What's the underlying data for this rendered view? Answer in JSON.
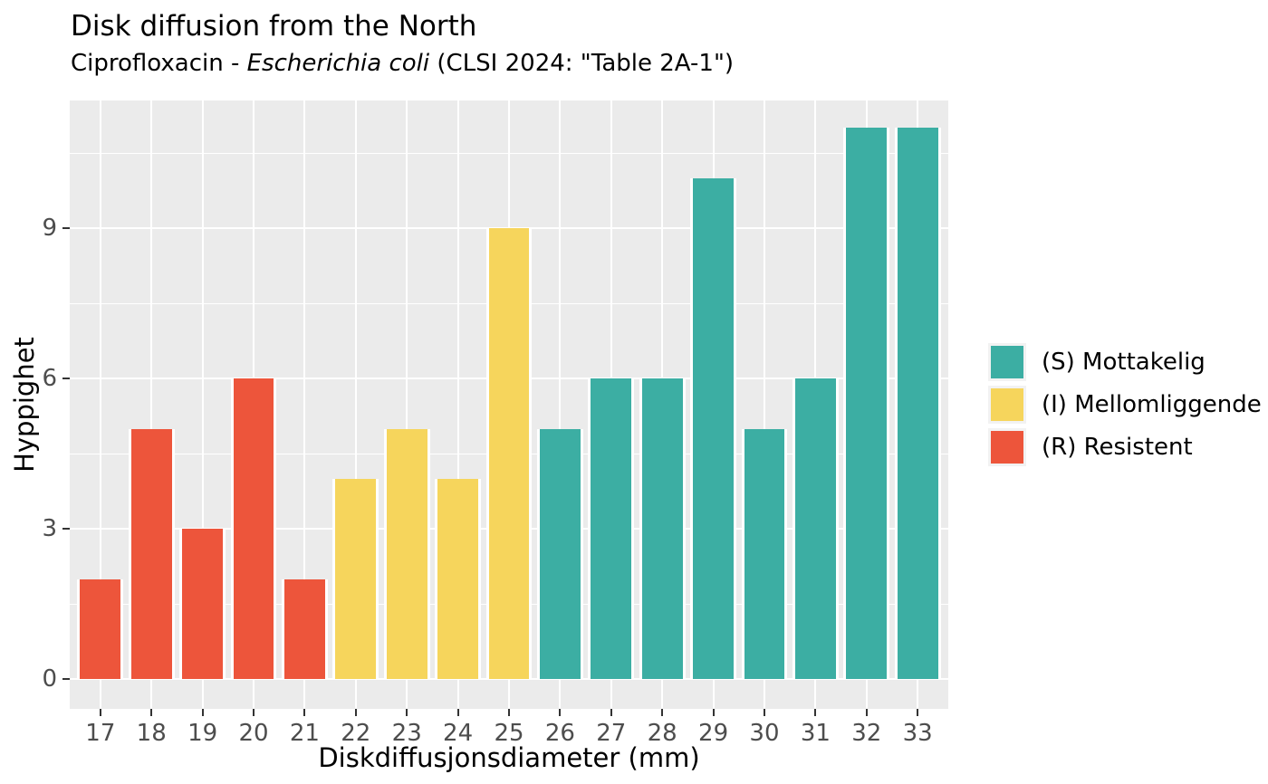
{
  "header": {
    "title": "Disk diffusion from the North",
    "subtitle": "Ciprofloxacin - Escherichia coli (CLSI 2024: \"Table 2A-1\")",
    "subtitle_parts": {
      "drug": "Ciprofloxacin - ",
      "species": "Escherichia coli",
      "guideline": " (CLSI 2024: \"Table 2A-1\")"
    }
  },
  "chart_data": {
    "type": "bar",
    "title": "Disk diffusion from the North",
    "subtitle": "Ciprofloxacin - Escherichia coli (CLSI 2024: \"Table 2A-1\")",
    "xlabel": "Diskdiffusjonsdiameter (mm)",
    "ylabel": "Hyppighet",
    "categories": [
      17,
      18,
      19,
      20,
      21,
      22,
      23,
      24,
      25,
      26,
      27,
      28,
      29,
      30,
      31,
      32,
      33
    ],
    "values": [
      2,
      5,
      3,
      6,
      2,
      4,
      5,
      4,
      9,
      5,
      6,
      6,
      10,
      5,
      6,
      11,
      11
    ],
    "classes": [
      "R",
      "R",
      "R",
      "R",
      "R",
      "I",
      "I",
      "I",
      "I",
      "S",
      "S",
      "S",
      "S",
      "S",
      "S",
      "S",
      "S"
    ],
    "colors": {
      "S": "#3CAEA3",
      "I": "#F6D55C",
      "R": "#ED553B"
    },
    "legend": [
      {
        "class": "S",
        "label": "(S) Mottakelig"
      },
      {
        "class": "I",
        "label": "(I) Mellomliggende"
      },
      {
        "class": "R",
        "label": "(R) Resistent"
      }
    ],
    "legend_position": "right",
    "y_ticks": [
      0,
      3,
      6,
      9
    ],
    "y_minor_ticks": [
      1.5,
      4.5,
      7.5,
      10.5
    ],
    "ylim": [
      -0.59,
      11.55
    ],
    "xlim": [
      16.4,
      33.6
    ],
    "grid": true,
    "bar_width": 0.9,
    "panel_background": "#EBEBEB",
    "gridline_color": "#FFFFFF",
    "tick_color": "#333333",
    "tick_label_color": "#4D4D4D"
  }
}
